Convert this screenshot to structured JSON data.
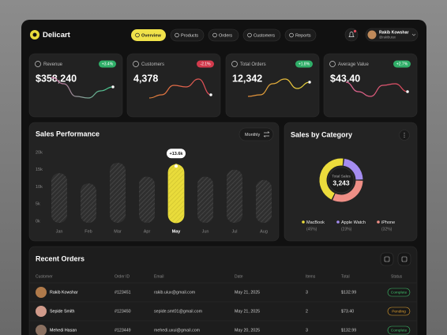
{
  "header": {
    "brand": "Delicart",
    "nav": [
      "Overview",
      "Products",
      "Orders",
      "Customers",
      "Reports"
    ],
    "user": {
      "name": "Rakib Kowshar",
      "handle": "@rakibuiux"
    }
  },
  "stats": [
    {
      "label": "Revenue",
      "badge": "+3.4%",
      "badge_color": "#2fae68",
      "value": "$358,240"
    },
    {
      "label": "Customers",
      "badge": "-2.1%",
      "badge_color": "#d23a4c",
      "value": "4,378"
    },
    {
      "label": "Total Orders",
      "badge": "+1.8%",
      "badge_color": "#2fae68",
      "value": "12,342"
    },
    {
      "label": "Average Value",
      "badge": "+2.7%",
      "badge_color": "#2fae68",
      "value": "$43.40"
    }
  ],
  "chart_data": [
    {
      "type": "bar",
      "title": "Sales Performance",
      "period": "Monthly",
      "categories": [
        "Jan",
        "Feb",
        "Mar",
        "Apr",
        "May",
        "Jun",
        "Jul",
        "Aug"
      ],
      "values": [
        14,
        11,
        17,
        13,
        16.5,
        13,
        15,
        12
      ],
      "color": "#e9dc3b",
      "ylim": [
        0,
        20
      ],
      "yticks": [
        {
          "value": 0,
          "label": "0k"
        },
        {
          "value": 5,
          "label": "5k"
        },
        {
          "value": 10,
          "label": "10k"
        },
        {
          "value": 15,
          "label": "15k"
        },
        {
          "value": 20,
          "label": "20k"
        }
      ],
      "grid": false,
      "annotations": [
        {
          "text": "+13.6k",
          "category": "May"
        }
      ]
    },
    {
      "type": "pie",
      "title": "Sales by Category",
      "center_label": "Total Sales",
      "center_value": "3,243",
      "categories": [
        "MacBook",
        "Apple Watch",
        "iPhone"
      ],
      "values": [
        45,
        23,
        32
      ],
      "value_labels": [
        "(45%)",
        "(23%)",
        "(32%)"
      ],
      "colors": [
        "#ecdc3c",
        "#a48cf0",
        "#ef8f86"
      ]
    }
  ],
  "orders": {
    "title": "Recent Orders",
    "columns": [
      "Customer",
      "Order ID",
      "Email",
      "Date",
      "Items",
      "Total",
      "Status"
    ],
    "rows": [
      {
        "customer": "Rakib Kowshar",
        "order_id": "#123451",
        "email": "rakib.uiux@gmail.com",
        "date": "May 21, 2025",
        "items": 3,
        "total": "$132.99",
        "status": "Complete",
        "status_color": "#3fbf6a"
      },
      {
        "customer": "Sepide Smith",
        "order_id": "#123450",
        "email": "sepide.smt01@gmail.com",
        "date": "May 21, 2025",
        "items": 2,
        "total": "$73.40",
        "status": "Pending",
        "status_color": "#e0a030"
      },
      {
        "customer": "Mehedi Hasan",
        "order_id": "#123449",
        "email": "mehedi.uxui@gmail.com",
        "date": "May 20, 2025",
        "items": 3,
        "total": "$132.99",
        "status": "Complete",
        "status_color": "#3fbf6a"
      }
    ]
  }
}
